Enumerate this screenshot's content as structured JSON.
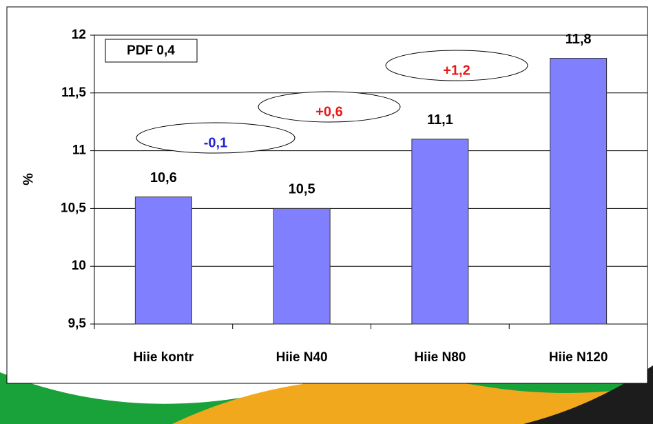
{
  "chart_data": {
    "type": "bar",
    "y_label": "%",
    "categories": [
      "Hiie kontr",
      "Hiie N40",
      "Hiie N80",
      "Hiie N120"
    ],
    "values": [
      10.6,
      10.5,
      11.1,
      11.8
    ],
    "value_labels": [
      "10,6",
      "10,5",
      "11,1",
      "11,8"
    ],
    "color": "#8080ff",
    "ylim": [
      9.5,
      12
    ],
    "yticks": [
      {
        "value": 9.5,
        "label": "9,5"
      },
      10,
      {
        "value": 10.5,
        "label": "10,5"
      },
      11,
      {
        "value": 11.5,
        "label": "11,5"
      },
      12
    ],
    "grid": true,
    "annotations": [
      {
        "text": "PDF 0,4",
        "color": "#000000"
      },
      {
        "text": "-0,1",
        "color": "#2323d8"
      },
      {
        "text": "+0,6",
        "color": "#e81818"
      },
      {
        "text": "+1,2",
        "color": "#e81818"
      }
    ]
  }
}
